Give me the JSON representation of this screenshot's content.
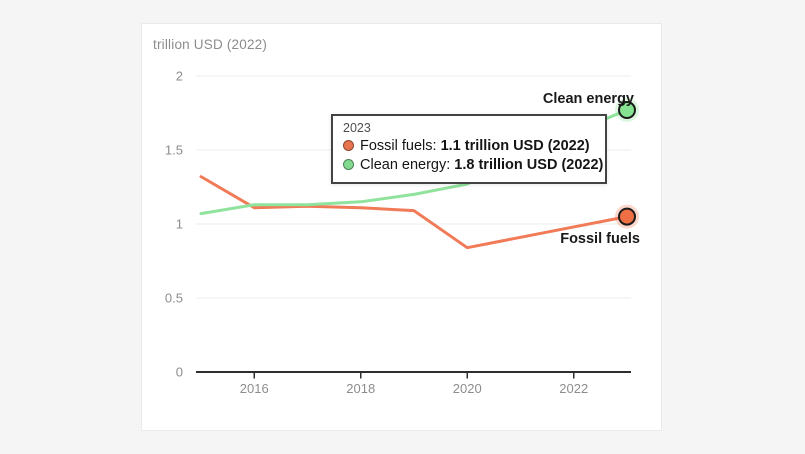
{
  "card": {
    "background": "#ffffff",
    "border_color": "#eaeaea"
  },
  "chart_data": {
    "type": "line",
    "title": "trillion USD (2022)",
    "x": [
      2015,
      2016,
      2017,
      2018,
      2019,
      2020,
      2021,
      2022,
      2023
    ],
    "series": [
      {
        "name": "Fossil fuels",
        "color": "#f17a57",
        "marker_color": "#ed6f43",
        "values": [
          1.32,
          1.11,
          1.12,
          1.11,
          1.09,
          0.84,
          0.91,
          0.98,
          1.05
        ]
      },
      {
        "name": "Clean energy",
        "color": "#90e39c",
        "marker_color": "#85e290",
        "values": [
          1.07,
          1.13,
          1.13,
          1.15,
          1.2,
          1.27,
          1.43,
          1.62,
          1.77
        ]
      }
    ],
    "ylim": [
      0,
      2
    ],
    "yticks": [
      0,
      0.5,
      1,
      1.5,
      2
    ],
    "ytick_labels": [
      "0",
      "0.5",
      "1",
      "1.5",
      "2"
    ],
    "xticks": [
      2016,
      2018,
      2020,
      2022
    ],
    "grid": true,
    "legend_position": "end-of-line-labels",
    "grid_color": "#ececec",
    "axis_color": "#2e2e2e",
    "tick_label_color": "#8d8d8d",
    "marker_stroke_color": "#1b1b1b"
  },
  "tooltip": {
    "title": "2023",
    "rows": [
      {
        "label": "Fossil fuels:",
        "value": "1.1 trillion USD (2022)",
        "swatch_color": "#e8734f"
      },
      {
        "label": "Clean energy:",
        "value": "1.8 trillion USD (2022)",
        "swatch_color": "#82d98f"
      }
    ]
  }
}
